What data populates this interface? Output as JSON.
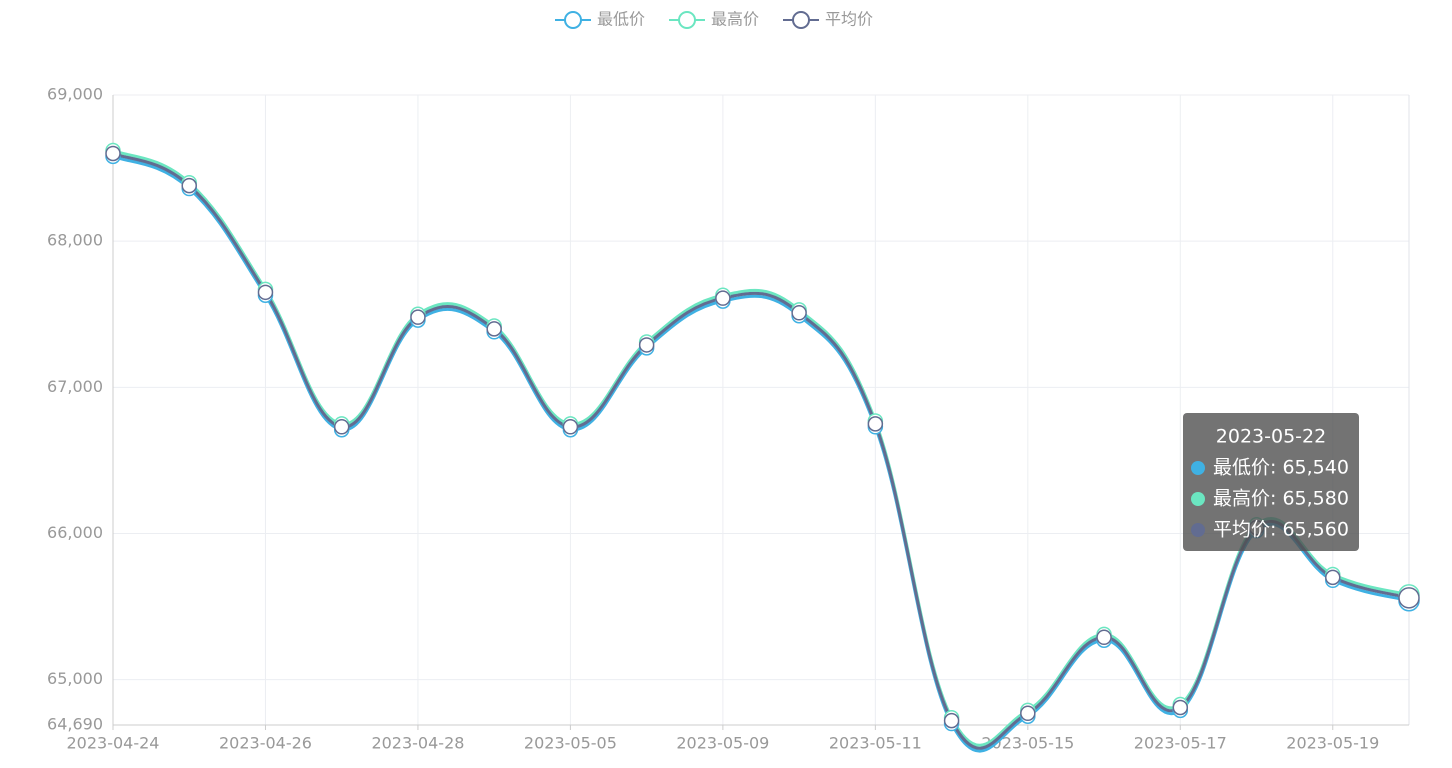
{
  "chart_data": {
    "type": "line",
    "categories": [
      "2023-04-24",
      null,
      "2023-04-26",
      null,
      "2023-04-28",
      null,
      "2023-05-05",
      null,
      "2023-05-09",
      null,
      "2023-05-11",
      null,
      "2023-05-15",
      null,
      "2023-05-17",
      null,
      "2023-05-19",
      "2023-05-22"
    ],
    "series": [
      {
        "name": "最低价",
        "color": "#3fb1e3",
        "values": [
          68580,
          68360,
          67630,
          66710,
          67460,
          67380,
          66710,
          67270,
          67590,
          67490,
          66730,
          64700,
          64750,
          65270,
          64790,
          66020,
          65680,
          65540
        ]
      },
      {
        "name": "最高价",
        "color": "#6be6c1",
        "values": [
          68620,
          68400,
          67670,
          66750,
          67500,
          67420,
          66750,
          67310,
          67630,
          67530,
          66770,
          64740,
          64790,
          65310,
          64830,
          66060,
          65720,
          65580
        ]
      },
      {
        "name": "平均价",
        "color": "#626c91",
        "values": [
          68600,
          68380,
          67650,
          66730,
          67480,
          67400,
          66730,
          67290,
          67610,
          67510,
          66750,
          64720,
          64770,
          65290,
          64810,
          66040,
          65700,
          65560
        ]
      }
    ],
    "ylim": [
      64690,
      69000
    ],
    "yticks": [
      {
        "value": 64690,
        "label": "64,690"
      },
      {
        "value": 65000,
        "label": "65,000"
      },
      {
        "value": 66000,
        "label": "66,000"
      },
      {
        "value": 67000,
        "label": "67,000"
      },
      {
        "value": 68000,
        "label": "68,000"
      },
      {
        "value": 69000,
        "label": "69,000"
      }
    ],
    "grid": true,
    "legend": "top",
    "smooth": true,
    "tooltip": {
      "index": 17,
      "rows": [
        "最低价: 65,540",
        "最高价: 65,580",
        "平均价: 65,560"
      ]
    }
  }
}
